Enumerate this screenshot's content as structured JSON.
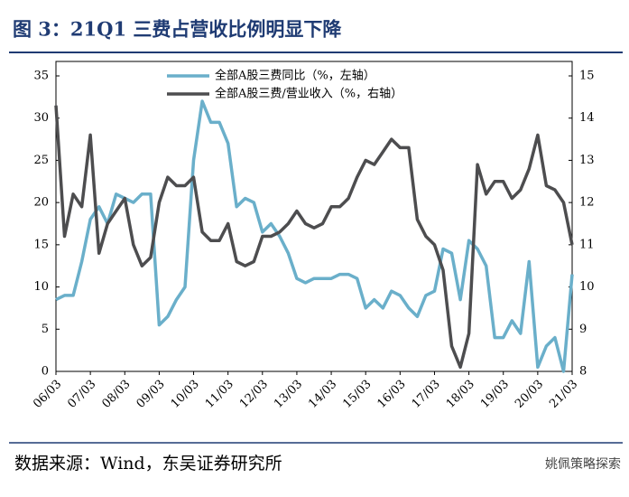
{
  "chart_data": {
    "type": "line",
    "title": "图 3：21Q1 三费占营收比例明显下降",
    "source": "数据来源：Wind，东吴证券研究所",
    "watermark": "姚佩策略探索",
    "categories": [
      "06/03",
      null,
      null,
      null,
      "07/03",
      null,
      null,
      null,
      "08/03",
      null,
      null,
      null,
      "09/03",
      null,
      null,
      null,
      "10/03",
      null,
      null,
      null,
      "11/03",
      null,
      null,
      null,
      "12/03",
      null,
      null,
      null,
      "13/03",
      null,
      null,
      null,
      "14/03",
      null,
      null,
      null,
      "15/03",
      null,
      null,
      null,
      "16/03",
      null,
      null,
      null,
      "17/03",
      null,
      null,
      null,
      "18/03",
      null,
      null,
      null,
      "19/03",
      null,
      null,
      null,
      "20/03",
      null,
      null,
      null,
      "21/03"
    ],
    "series": [
      {
        "name": "全部A股三费同比（%，左轴）",
        "color": "#6aafca",
        "axis": "y",
        "values": [
          8.5,
          9,
          9,
          13,
          18,
          19.5,
          17.5,
          21,
          20.5,
          20,
          21,
          21,
          5.5,
          6.5,
          8.5,
          10,
          25,
          32,
          29.5,
          29.5,
          27,
          19.5,
          20.5,
          20,
          16.5,
          17.5,
          16,
          14,
          11,
          10.5,
          11,
          11,
          11,
          11.5,
          11.5,
          11,
          7.5,
          8.5,
          7.5,
          9.5,
          9,
          7.5,
          6.5,
          9,
          9.5,
          14.5,
          14,
          8.5,
          15.5,
          14.5,
          12.5,
          4,
          4,
          6,
          4.5,
          13,
          0.5,
          3,
          4,
          0,
          11.5
        ]
      },
      {
        "name": "全部A股三费/营业收入（%，右轴）",
        "color": "#4d4d4f",
        "axis": "y2",
        "values": [
          14.3,
          11.2,
          12.2,
          11.9,
          13.6,
          10.8,
          11.5,
          11.8,
          12.1,
          11.0,
          10.5,
          10.7,
          12.0,
          12.6,
          12.4,
          12.4,
          12.6,
          11.3,
          11.1,
          11.1,
          11.5,
          10.6,
          10.5,
          10.6,
          11.2,
          11.2,
          11.3,
          11.5,
          11.8,
          11.5,
          11.4,
          11.5,
          11.9,
          11.9,
          12.1,
          12.6,
          13.0,
          12.9,
          13.2,
          13.5,
          13.3,
          13.3,
          11.6,
          11.2,
          11.0,
          10.4,
          8.6,
          8.1,
          8.9,
          12.9,
          12.2,
          12.5,
          12.5,
          12.1,
          12.3,
          12.8,
          13.6,
          12.4,
          12.3,
          12.0,
          11.0
        ]
      }
    ],
    "ylim": [
      0,
      35
    ],
    "yticks": [
      0,
      5,
      10,
      15,
      20,
      25,
      30,
      35
    ],
    "y2lim": [
      8,
      15
    ],
    "y2ticks": [
      8,
      9,
      10,
      11,
      12,
      13,
      14,
      15
    ],
    "legend": "top"
  }
}
